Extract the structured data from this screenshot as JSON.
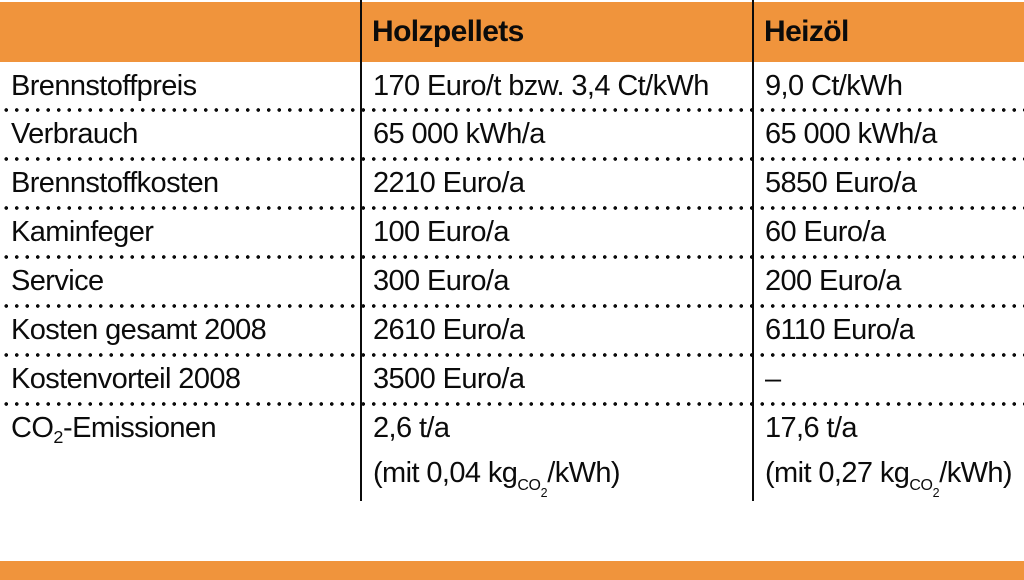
{
  "colors": {
    "accent_orange": "#F0943C",
    "text": "#0B0B0B",
    "background": "#FFFFFF"
  },
  "table": {
    "columns": [
      "Holzpellets",
      "Heizöl"
    ],
    "rows": [
      {
        "label": "Brennstoffpreis",
        "pellets": "170 Euro/t bzw. 3,4 Ct/kWh",
        "oil": "9,0 Ct/kWh"
      },
      {
        "label": "Verbrauch",
        "pellets": "65 000 kWh/a",
        "oil": "65 000 kWh/a"
      },
      {
        "label": "Brennstoffkosten",
        "pellets": "2210 Euro/a",
        "oil": "5850 Euro/a"
      },
      {
        "label": "Kaminfeger",
        "pellets": "100 Euro/a",
        "oil": "60 Euro/a"
      },
      {
        "label": "Service",
        "pellets": "300 Euro/a",
        "oil": "200 Euro/a"
      },
      {
        "label": "Kosten gesamt 2008",
        "pellets": "2610 Euro/a",
        "oil": "6110 Euro/a"
      },
      {
        "label": "Kostenvorteil 2008",
        "pellets": "3500 Euro/a",
        "oil": "–"
      }
    ],
    "co2_row": {
      "label_parts": [
        "CO",
        "2",
        "-Emissionen"
      ],
      "pellets": {
        "line1": "2,6 t/a",
        "line2": [
          "(mit 0,04 kg",
          "CO",
          "2",
          "/kWh)"
        ]
      },
      "oil": {
        "line1": "17,6 t/a",
        "line2": [
          "(mit 0,27 kg",
          "CO",
          "2",
          "/kWh)"
        ]
      }
    }
  }
}
